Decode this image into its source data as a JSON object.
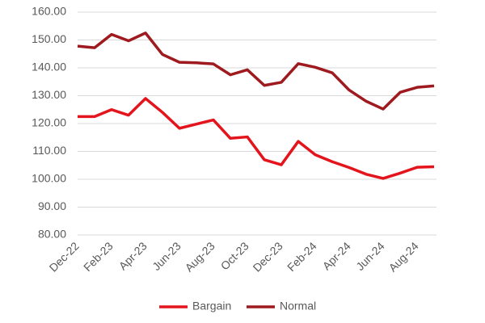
{
  "chart_data": {
    "type": "line",
    "categories": [
      "Dec-22",
      null,
      "Feb-23",
      null,
      "Apr-23",
      null,
      "Jun-23",
      null,
      "Aug-23",
      null,
      "Oct-23",
      null,
      "Dec-23",
      null,
      "Feb-24",
      null,
      "Apr-24",
      null,
      "Jun-24",
      null,
      "Aug-24",
      null
    ],
    "series": [
      {
        "name": "Bargain",
        "color": "#e3141c",
        "values": [
          122.5,
          122.5,
          125,
          123,
          129,
          124,
          118.3,
          119.8,
          121.3,
          114.7,
          115.2,
          107,
          105.2,
          113.6,
          108.8,
          106.3,
          104.2,
          101.8,
          100.3,
          102.2,
          104.3,
          104.5
        ]
      },
      {
        "name": "Normal",
        "color": "#9e1a1e",
        "values": [
          147.8,
          147.2,
          152,
          149.7,
          152.5,
          144.8,
          142,
          141.8,
          141.4,
          137.5,
          139.3,
          133.7,
          134.8,
          141.5,
          140.2,
          138.2,
          132,
          128,
          125.2,
          131.2,
          133,
          133.5
        ]
      }
    ],
    "ylim": [
      80,
      160
    ],
    "yticks": [
      {
        "value": 80,
        "label": "80.00"
      },
      {
        "value": 90,
        "label": "90.00"
      },
      {
        "value": 100,
        "label": "100.00"
      },
      {
        "value": 110,
        "label": "110.00"
      },
      {
        "value": 120,
        "label": "120.00"
      },
      {
        "value": 130,
        "label": "130.00"
      },
      {
        "value": 140,
        "label": "140.00"
      },
      {
        "value": 150,
        "label": "150.00"
      },
      {
        "value": 160,
        "label": "160.00"
      }
    ],
    "grid": true,
    "legend": "bottom"
  }
}
